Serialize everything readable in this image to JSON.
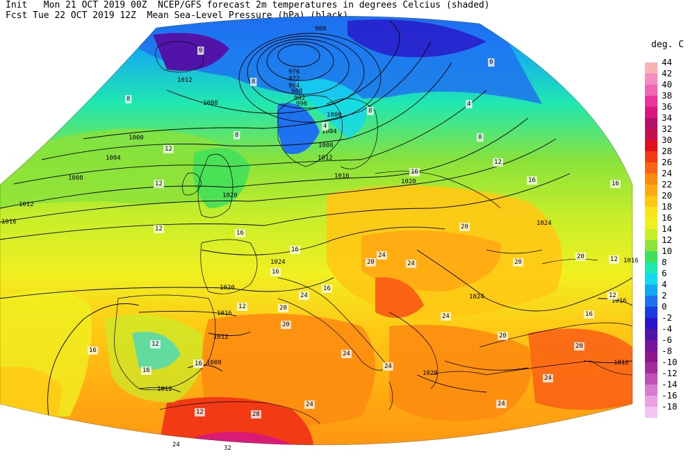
{
  "header": {
    "init_line": "Init   Mon 21 OCT 2019 00Z  NCEP/GFS forecast 2m temperatures in degrees Celcius (shaded)",
    "fcst_line": "Fcst Tue 22 OCT 2019 12Z  Mean Sea-Level Pressure (hPa) (black)."
  },
  "legend": {
    "title": "deg. C",
    "levels": [
      {
        "label": "44",
        "color": "#f7b3b5"
      },
      {
        "label": "42",
        "color": "#f48cc0"
      },
      {
        "label": "40",
        "color": "#f066b0"
      },
      {
        "label": "38",
        "color": "#e8359d"
      },
      {
        "label": "36",
        "color": "#d6187f"
      },
      {
        "label": "34",
        "color": "#b4126a"
      },
      {
        "label": "32",
        "color": "#c4104c"
      },
      {
        "label": "30",
        "color": "#e0101c"
      },
      {
        "label": "28",
        "color": "#f23a14"
      },
      {
        "label": "26",
        "color": "#fb6414"
      },
      {
        "label": "24",
        "color": "#fd8c10"
      },
      {
        "label": "22",
        "color": "#ffaa12"
      },
      {
        "label": "20",
        "color": "#ffc814"
      },
      {
        "label": "18",
        "color": "#fde31a"
      },
      {
        "label": "16",
        "color": "#f0f020"
      },
      {
        "label": "14",
        "color": "#c8ee2a"
      },
      {
        "label": "12",
        "color": "#8ae23a"
      },
      {
        "label": "10",
        "color": "#3ee05c"
      },
      {
        "label": "8",
        "color": "#20e8b0"
      },
      {
        "label": "6",
        "color": "#14d8f0"
      },
      {
        "label": "4",
        "color": "#12a8f2"
      },
      {
        "label": "2",
        "color": "#1e72f0"
      },
      {
        "label": "0",
        "color": "#1a3ae0"
      },
      {
        "label": "-2",
        "color": "#2a14c8"
      },
      {
        "label": "-4",
        "color": "#5214a8"
      },
      {
        "label": "-6",
        "color": "#7416a0"
      },
      {
        "label": "-8",
        "color": "#90168e"
      },
      {
        "label": "-10",
        "color": "#a42c9a"
      },
      {
        "label": "-12",
        "color": "#c050b8"
      },
      {
        "label": "-14",
        "color": "#d87ad0"
      },
      {
        "label": "-16",
        "color": "#eaa0e4"
      },
      {
        "label": "-18",
        "color": "#f6c4f2"
      }
    ]
  },
  "isobar_labels": [
    "980",
    "976",
    "972",
    "984",
    "988",
    "992",
    "996",
    "1000",
    "1004",
    "1008",
    "1012",
    "1016",
    "1020",
    "1024",
    "1028",
    "1012",
    "1008",
    "1000",
    "1004",
    "1008",
    "1012",
    "1016",
    "1020",
    "1024",
    "1016",
    "1012",
    "1020",
    "1016",
    "1012",
    "1008",
    "1012",
    "1024",
    "1016",
    "1012",
    "1020",
    "1024",
    "1016",
    "1024",
    "1028",
    "1012",
    "1016",
    "1012"
  ],
  "temp_labels": [
    "0",
    "8",
    "8",
    "4",
    "4",
    "8",
    "12",
    "12",
    "16",
    "16",
    "16",
    "12",
    "12",
    "16",
    "16",
    "16",
    "20",
    "24",
    "24",
    "20",
    "20",
    "20",
    "24",
    "24",
    "24",
    "24",
    "28",
    "32",
    "24",
    "16",
    "16",
    "12",
    "12",
    "16",
    "20",
    "24",
    "20",
    "24",
    "20",
    "12",
    "16",
    "16",
    "12",
    "20",
    "24",
    "12",
    "8",
    "8",
    "0"
  ]
}
